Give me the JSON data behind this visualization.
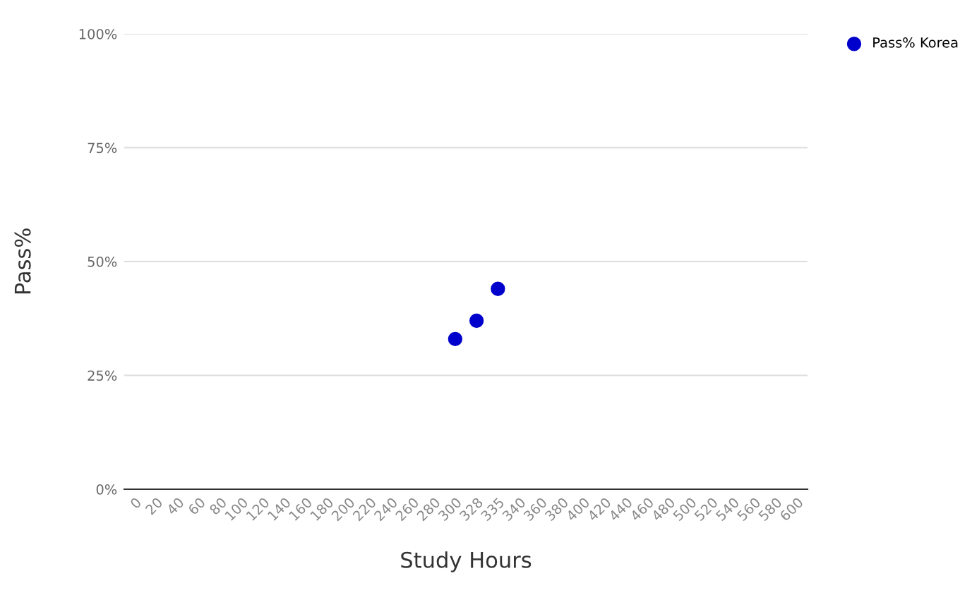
{
  "chart_data": {
    "type": "scatter",
    "xlabel": "Study Hours",
    "ylabel": "Pass%",
    "categories": [
      "0",
      "20",
      "40",
      "60",
      "80",
      "100",
      "120",
      "140",
      "160",
      "180",
      "200",
      "220",
      "240",
      "260",
      "280",
      "300",
      "328",
      "335",
      "340",
      "360",
      "380",
      "400",
      "420",
      "440",
      "460",
      "480",
      "500",
      "520",
      "540",
      "560",
      "580",
      "600"
    ],
    "series": [
      {
        "name": "Pass% Korea",
        "color": "#0000cc",
        "values": [
          null,
          null,
          null,
          null,
          null,
          null,
          null,
          null,
          null,
          null,
          null,
          null,
          null,
          null,
          null,
          33,
          37,
          44,
          null,
          null,
          null,
          null,
          null,
          null,
          null,
          null,
          null,
          null,
          null,
          null,
          null,
          null
        ]
      }
    ],
    "ylim": [
      0,
      100
    ],
    "yticks": [
      {
        "value": 0,
        "label": "0%"
      },
      {
        "value": 25,
        "label": "25%"
      },
      {
        "value": 50,
        "label": "50%"
      },
      {
        "value": 75,
        "label": "75%"
      },
      {
        "value": 100,
        "label": "100%"
      }
    ],
    "grid": "y",
    "legend": "top right",
    "marker": "circle"
  }
}
